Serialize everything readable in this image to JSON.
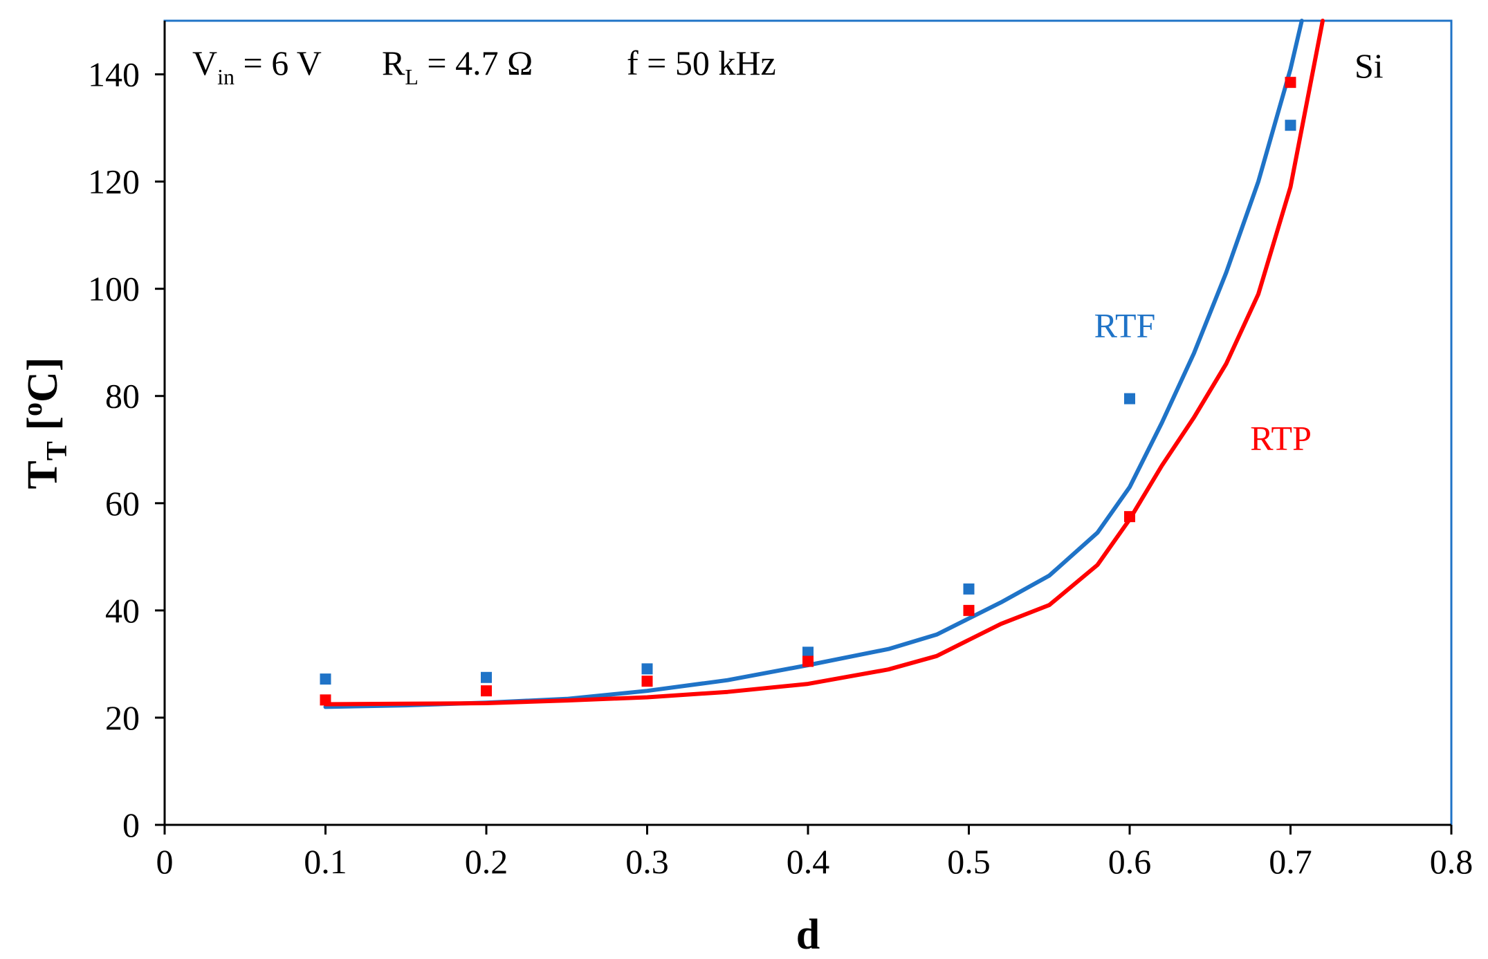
{
  "chart_data": {
    "type": "scatter",
    "title": "",
    "xlabel": "d",
    "ylabel": {
      "main": "T",
      "sub": "T",
      "rest": " [",
      "sup": "o",
      "end": "C]"
    },
    "xlim": [
      0,
      0.8
    ],
    "ylim": [
      0,
      150
    ],
    "x_ticks": [
      0,
      0.1,
      0.2,
      0.3,
      0.4,
      0.5,
      0.6,
      0.7,
      0.8
    ],
    "x_tick_labels": [
      "0",
      "0.1",
      "0.2",
      "0.3",
      "0.4",
      "0.5",
      "0.6",
      "0.7",
      "0.8"
    ],
    "y_ticks": [
      0,
      20,
      40,
      60,
      80,
      100,
      120,
      140
    ],
    "y_tick_labels": [
      "0",
      "20",
      "40",
      "60",
      "80",
      "100",
      "120",
      "140"
    ],
    "grid": false,
    "annotations": {
      "vin_label": "V",
      "vin_sub": "in",
      "vin_value": " = 6 V",
      "rl_label": "R",
      "rl_sub": "L",
      "rl_value": " = 4.7 Ω",
      "freq": "f = 50 kHz",
      "material": "Si"
    },
    "series": [
      {
        "name": "RTF",
        "color": "#1f73c7",
        "label_anchor": {
          "x": 0.597,
          "y": 91
        },
        "points_x": [
          0.1,
          0.2,
          0.3,
          0.4,
          0.5,
          0.6,
          0.7
        ],
        "points_y": [
          27.2,
          27.5,
          29.1,
          32.2,
          44.0,
          79.5,
          130.5
        ],
        "curve": [
          [
            0.1,
            22.0
          ],
          [
            0.15,
            22.3
          ],
          [
            0.2,
            22.8
          ],
          [
            0.25,
            23.5
          ],
          [
            0.3,
            25.0
          ],
          [
            0.35,
            27.0
          ],
          [
            0.4,
            29.8
          ],
          [
            0.45,
            32.8
          ],
          [
            0.48,
            35.5
          ],
          [
            0.5,
            38.5
          ],
          [
            0.52,
            41.5
          ],
          [
            0.55,
            46.5
          ],
          [
            0.58,
            54.5
          ],
          [
            0.6,
            63.0
          ],
          [
            0.62,
            75.0
          ],
          [
            0.64,
            88.0
          ],
          [
            0.66,
            103.0
          ],
          [
            0.68,
            120.0
          ],
          [
            0.7,
            141.0
          ],
          [
            0.707,
            150.0
          ]
        ]
      },
      {
        "name": "RTP",
        "color": "#ff0000",
        "label_anchor": {
          "x": 0.694,
          "y": 70
        },
        "points_x": [
          0.1,
          0.2,
          0.3,
          0.4,
          0.5,
          0.6,
          0.7
        ],
        "points_y": [
          23.3,
          25.0,
          26.8,
          30.5,
          40.0,
          57.5,
          138.5
        ],
        "curve": [
          [
            0.1,
            22.5
          ],
          [
            0.15,
            22.6
          ],
          [
            0.2,
            22.7
          ],
          [
            0.25,
            23.2
          ],
          [
            0.3,
            23.8
          ],
          [
            0.35,
            24.8
          ],
          [
            0.4,
            26.3
          ],
          [
            0.45,
            29.0
          ],
          [
            0.48,
            31.5
          ],
          [
            0.5,
            34.5
          ],
          [
            0.52,
            37.5
          ],
          [
            0.55,
            41.0
          ],
          [
            0.58,
            48.5
          ],
          [
            0.6,
            57.0
          ],
          [
            0.62,
            67.0
          ],
          [
            0.64,
            76.0
          ],
          [
            0.66,
            86.0
          ],
          [
            0.68,
            99.0
          ],
          [
            0.7,
            119.0
          ],
          [
            0.72,
            150.0
          ]
        ]
      }
    ]
  }
}
